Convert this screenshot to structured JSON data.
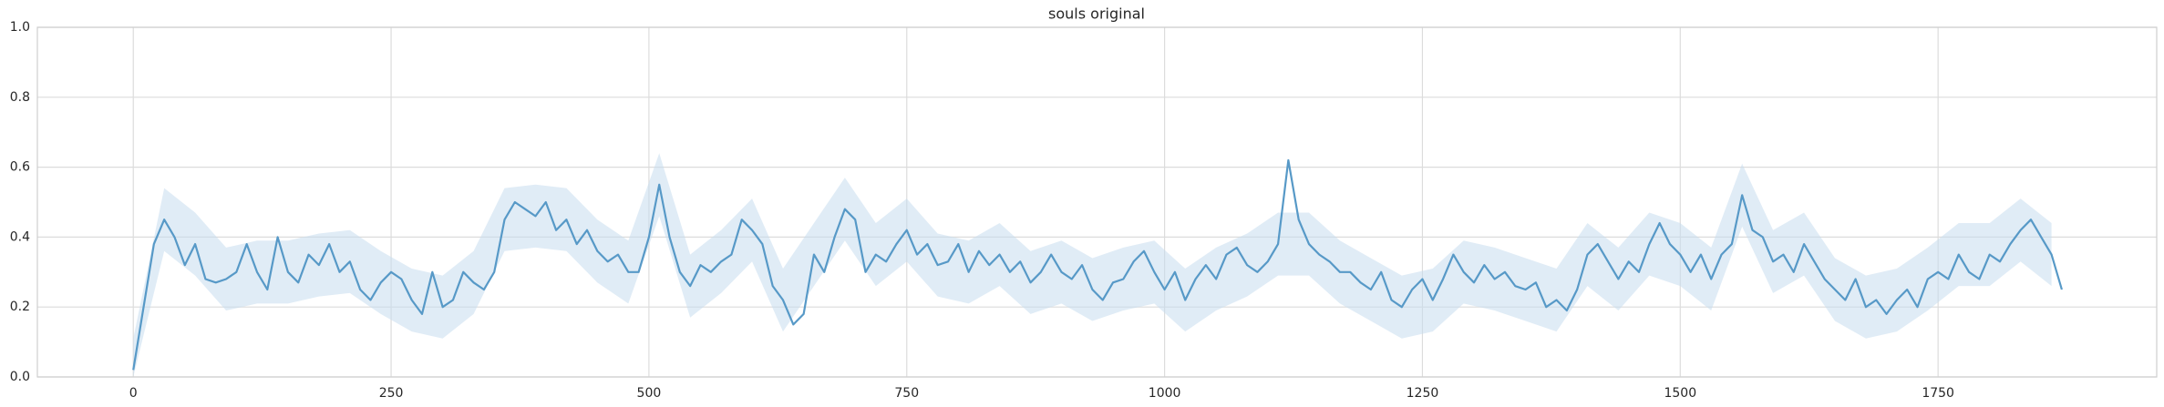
{
  "chart_data": {
    "type": "line",
    "title": "souls original",
    "x": [
      0,
      10,
      20,
      30,
      40,
      50,
      60,
      70,
      80,
      90,
      100,
      110,
      120,
      130,
      140,
      150,
      160,
      170,
      180,
      190,
      200,
      210,
      220,
      230,
      240,
      250,
      260,
      270,
      280,
      290,
      300,
      310,
      320,
      330,
      340,
      350,
      360,
      370,
      380,
      390,
      400,
      410,
      420,
      430,
      440,
      450,
      460,
      470,
      480,
      490,
      500,
      510,
      520,
      530,
      540,
      550,
      560,
      570,
      580,
      590,
      600,
      610,
      620,
      630,
      640,
      650,
      660,
      670,
      680,
      690,
      700,
      710,
      720,
      730,
      740,
      750,
      760,
      770,
      780,
      790,
      800,
      810,
      820,
      830,
      840,
      850,
      860,
      870,
      880,
      890,
      900,
      910,
      920,
      930,
      940,
      950,
      960,
      970,
      980,
      990,
      1000,
      1010,
      1020,
      1030,
      1040,
      1050,
      1060,
      1070,
      1080,
      1090,
      1100,
      1110,
      1120,
      1130,
      1140,
      1150,
      1160,
      1170,
      1180,
      1190,
      1200,
      1210,
      1220,
      1230,
      1240,
      1250,
      1260,
      1270,
      1280,
      1290,
      1300,
      1310,
      1320,
      1330,
      1340,
      1350,
      1360,
      1370,
      1380,
      1390,
      1400,
      1410,
      1420,
      1430,
      1440,
      1450,
      1460,
      1470,
      1480,
      1490,
      1500,
      1510,
      1520,
      1530,
      1540,
      1550,
      1560,
      1570,
      1580,
      1590,
      1600,
      1610,
      1620,
      1630,
      1640,
      1650,
      1660,
      1670,
      1680,
      1690,
      1700,
      1710,
      1720,
      1730,
      1740,
      1750,
      1760,
      1770,
      1780,
      1790,
      1800,
      1810,
      1820,
      1830,
      1840,
      1850,
      1860,
      1870
    ],
    "series": [
      {
        "color": "#5799c7",
        "values": [
          0.02,
          0.2,
          0.38,
          0.45,
          0.4,
          0.32,
          0.38,
          0.28,
          0.27,
          0.28,
          0.3,
          0.38,
          0.3,
          0.25,
          0.4,
          0.3,
          0.27,
          0.35,
          0.32,
          0.38,
          0.3,
          0.33,
          0.25,
          0.22,
          0.27,
          0.3,
          0.28,
          0.22,
          0.18,
          0.3,
          0.2,
          0.22,
          0.3,
          0.27,
          0.25,
          0.3,
          0.45,
          0.5,
          0.48,
          0.46,
          0.5,
          0.42,
          0.45,
          0.38,
          0.42,
          0.36,
          0.33,
          0.35,
          0.3,
          0.3,
          0.4,
          0.55,
          0.4,
          0.3,
          0.26,
          0.32,
          0.3,
          0.33,
          0.35,
          0.45,
          0.42,
          0.38,
          0.26,
          0.22,
          0.15,
          0.18,
          0.35,
          0.3,
          0.4,
          0.48,
          0.45,
          0.3,
          0.35,
          0.33,
          0.38,
          0.42,
          0.35,
          0.38,
          0.32,
          0.33,
          0.38,
          0.3,
          0.36,
          0.32,
          0.35,
          0.3,
          0.33,
          0.27,
          0.3,
          0.35,
          0.3,
          0.28,
          0.32,
          0.25,
          0.22,
          0.27,
          0.28,
          0.33,
          0.36,
          0.3,
          0.25,
          0.3,
          0.22,
          0.28,
          0.32,
          0.28,
          0.35,
          0.37,
          0.32,
          0.3,
          0.33,
          0.38,
          0.62,
          0.45,
          0.38,
          0.35,
          0.33,
          0.3,
          0.3,
          0.27,
          0.25,
          0.3,
          0.22,
          0.2,
          0.25,
          0.28,
          0.22,
          0.28,
          0.35,
          0.3,
          0.27,
          0.32,
          0.28,
          0.3,
          0.26,
          0.25,
          0.27,
          0.2,
          0.22,
          0.19,
          0.25,
          0.35,
          0.38,
          0.33,
          0.28,
          0.33,
          0.3,
          0.38,
          0.44,
          0.38,
          0.35,
          0.3,
          0.35,
          0.28,
          0.35,
          0.38,
          0.52,
          0.42,
          0.4,
          0.33,
          0.35,
          0.3,
          0.38,
          0.33,
          0.28,
          0.25,
          0.22,
          0.28,
          0.2,
          0.22,
          0.18,
          0.22,
          0.25,
          0.2,
          0.28,
          0.3,
          0.28,
          0.35,
          0.3,
          0.28,
          0.35,
          0.33,
          0.38,
          0.42,
          0.45,
          0.4,
          0.35,
          0.25
        ]
      }
    ],
    "band": {
      "color": "#c6dcef",
      "x": [
        0,
        30,
        60,
        90,
        120,
        150,
        180,
        210,
        240,
        270,
        300,
        330,
        360,
        390,
        420,
        450,
        480,
        510,
        540,
        570,
        600,
        630,
        660,
        690,
        720,
        750,
        780,
        810,
        840,
        870,
        900,
        930,
        960,
        990,
        1020,
        1050,
        1080,
        1110,
        1140,
        1170,
        1200,
        1230,
        1260,
        1290,
        1320,
        1350,
        1380,
        1410,
        1440,
        1470,
        1500,
        1530,
        1560,
        1590,
        1620,
        1650,
        1680,
        1710,
        1740,
        1770,
        1800,
        1830,
        1860
      ],
      "lower": [
        0,
        0.36,
        0.29,
        0.19,
        0.21,
        0.21,
        0.23,
        0.24,
        0.18,
        0.13,
        0.11,
        0.18,
        0.36,
        0.37,
        0.36,
        0.27,
        0.21,
        0.46,
        0.17,
        0.24,
        0.33,
        0.13,
        0.26,
        0.39,
        0.26,
        0.33,
        0.23,
        0.21,
        0.26,
        0.18,
        0.21,
        0.16,
        0.19,
        0.21,
        0.13,
        0.19,
        0.23,
        0.29,
        0.29,
        0.21,
        0.16,
        0.11,
        0.13,
        0.21,
        0.19,
        0.16,
        0.13,
        0.26,
        0.19,
        0.29,
        0.26,
        0.19,
        0.43,
        0.24,
        0.29,
        0.16,
        0.11,
        0.13,
        0.19,
        0.26,
        0.26,
        0.33,
        0.26
      ],
      "upper": [
        0.11,
        0.54,
        0.47,
        0.37,
        0.39,
        0.39,
        0.41,
        0.42,
        0.36,
        0.31,
        0.29,
        0.36,
        0.54,
        0.55,
        0.54,
        0.45,
        0.39,
        0.64,
        0.35,
        0.42,
        0.51,
        0.31,
        0.44,
        0.57,
        0.44,
        0.51,
        0.41,
        0.39,
        0.44,
        0.36,
        0.39,
        0.34,
        0.37,
        0.39,
        0.31,
        0.37,
        0.41,
        0.47,
        0.47,
        0.39,
        0.34,
        0.29,
        0.31,
        0.39,
        0.37,
        0.34,
        0.31,
        0.44,
        0.37,
        0.47,
        0.44,
        0.37,
        0.61,
        0.42,
        0.47,
        0.34,
        0.29,
        0.31,
        0.37,
        0.44,
        0.44,
        0.51,
        0.44
      ]
    },
    "xlim": [
      -93,
      1962
    ],
    "ylim": [
      0,
      1
    ],
    "xticks": [
      0,
      250,
      500,
      750,
      1000,
      1250,
      1500,
      1750
    ],
    "yticks": [
      0.0,
      0.2,
      0.4,
      0.6,
      0.8,
      1.0
    ],
    "grid": true
  }
}
